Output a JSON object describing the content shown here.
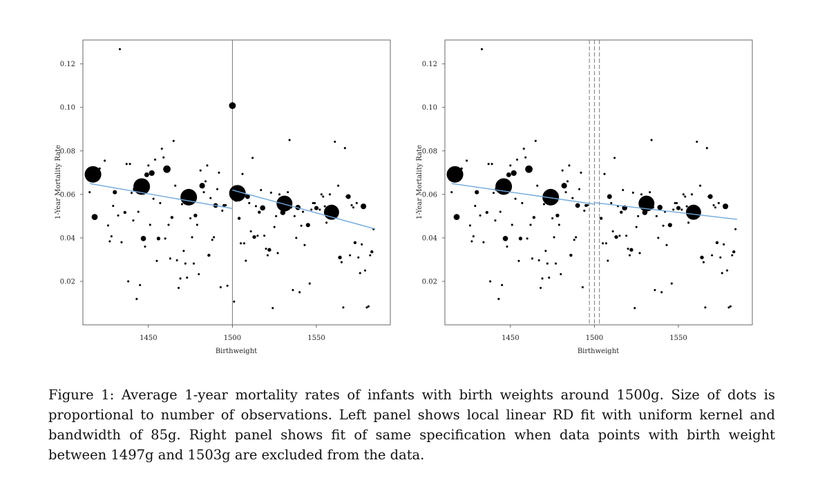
{
  "chart_data": [
    {
      "type": "scatter",
      "panel": "left",
      "title": "",
      "xlabel": "Birthweight",
      "ylabel": "1-Year Mortality Rate",
      "xlim": [
        1411,
        1594
      ],
      "ylim": [
        0.0,
        0.131
      ],
      "xticks": [
        1450,
        1500,
        1550
      ],
      "yticks": [
        0.02,
        0.04,
        0.06,
        0.08,
        0.1,
        0.12
      ],
      "ytick_labels": [
        "0.02",
        "0.04",
        "0.06",
        "0.08",
        "0.10",
        "0.12"
      ],
      "cutoff_lines": [
        1500
      ],
      "cutoff_style": "solid",
      "excluded_points": false,
      "fit_lines": [
        {
          "x": [
            1415,
            1500
          ],
          "y": [
            0.065,
            0.0535
          ]
        },
        {
          "x": [
            1500,
            1585
          ],
          "y": [
            0.062,
            0.0441
          ]
        }
      ],
      "points": [
        {
          "x": 1415,
          "y": 0.061,
          "n": 1
        },
        {
          "x": 1417,
          "y": 0.0692,
          "n": 60
        },
        {
          "x": 1418,
          "y": 0.0496,
          "n": 8
        },
        {
          "x": 1421,
          "y": 0.0719,
          "n": 1
        },
        {
          "x": 1424,
          "y": 0.0755,
          "n": 1
        },
        {
          "x": 1426,
          "y": 0.0457,
          "n": 1
        },
        {
          "x": 1427,
          "y": 0.0384,
          "n": 1
        },
        {
          "x": 1428,
          "y": 0.0407,
          "n": 1
        },
        {
          "x": 1429,
          "y": 0.0547,
          "n": 1
        },
        {
          "x": 1430,
          "y": 0.061,
          "n": 4
        },
        {
          "x": 1432,
          "y": 0.0503,
          "n": 1
        },
        {
          "x": 1433,
          "y": 0.1268,
          "n": 1
        },
        {
          "x": 1434,
          "y": 0.038,
          "n": 1
        },
        {
          "x": 1436,
          "y": 0.0517,
          "n": 2
        },
        {
          "x": 1437,
          "y": 0.074,
          "n": 1
        },
        {
          "x": 1438,
          "y": 0.02,
          "n": 1
        },
        {
          "x": 1439,
          "y": 0.074,
          "n": 1
        },
        {
          "x": 1440,
          "y": 0.0607,
          "n": 1
        },
        {
          "x": 1441,
          "y": 0.048,
          "n": 1
        },
        {
          "x": 1442,
          "y": 0.0624,
          "n": 4
        },
        {
          "x": 1443,
          "y": 0.0119,
          "n": 1
        },
        {
          "x": 1444,
          "y": 0.052,
          "n": 1
        },
        {
          "x": 1445,
          "y": 0.0183,
          "n": 1
        },
        {
          "x": 1446,
          "y": 0.0636,
          "n": 60
        },
        {
          "x": 1447,
          "y": 0.0397,
          "n": 6
        },
        {
          "x": 1448,
          "y": 0.036,
          "n": 1
        },
        {
          "x": 1449,
          "y": 0.069,
          "n": 5
        },
        {
          "x": 1450,
          "y": 0.0733,
          "n": 1
        },
        {
          "x": 1451,
          "y": 0.046,
          "n": 1
        },
        {
          "x": 1452,
          "y": 0.0698,
          "n": 7
        },
        {
          "x": 1453,
          "y": 0.058,
          "n": 1
        },
        {
          "x": 1454,
          "y": 0.076,
          "n": 1
        },
        {
          "x": 1455,
          "y": 0.0294,
          "n": 1
        },
        {
          "x": 1456,
          "y": 0.0397,
          "n": 3
        },
        {
          "x": 1457,
          "y": 0.056,
          "n": 1
        },
        {
          "x": 1458,
          "y": 0.081,
          "n": 1
        },
        {
          "x": 1459,
          "y": 0.077,
          "n": 1
        },
        {
          "x": 1460,
          "y": 0.0397,
          "n": 1
        },
        {
          "x": 1461,
          "y": 0.0716,
          "n": 12
        },
        {
          "x": 1462,
          "y": 0.046,
          "n": 1
        },
        {
          "x": 1463,
          "y": 0.0305,
          "n": 1
        },
        {
          "x": 1464,
          "y": 0.0494,
          "n": 2
        },
        {
          "x": 1465,
          "y": 0.0846,
          "n": 1
        },
        {
          "x": 1466,
          "y": 0.064,
          "n": 1
        },
        {
          "x": 1467,
          "y": 0.0297,
          "n": 1
        },
        {
          "x": 1468,
          "y": 0.017,
          "n": 1
        },
        {
          "x": 1469,
          "y": 0.0213,
          "n": 1
        },
        {
          "x": 1470,
          "y": 0.0555,
          "n": 1
        },
        {
          "x": 1471,
          "y": 0.034,
          "n": 1
        },
        {
          "x": 1472,
          "y": 0.0282,
          "n": 1
        },
        {
          "x": 1473,
          "y": 0.0217,
          "n": 1
        },
        {
          "x": 1474,
          "y": 0.0587,
          "n": 60
        },
        {
          "x": 1475,
          "y": 0.049,
          "n": 1
        },
        {
          "x": 1476,
          "y": 0.0403,
          "n": 1
        },
        {
          "x": 1477,
          "y": 0.0282,
          "n": 1
        },
        {
          "x": 1478,
          "y": 0.0503,
          "n": 3
        },
        {
          "x": 1479,
          "y": 0.046,
          "n": 1
        },
        {
          "x": 1480,
          "y": 0.0233,
          "n": 1
        },
        {
          "x": 1481,
          "y": 0.071,
          "n": 1
        },
        {
          "x": 1482,
          "y": 0.064,
          "n": 7
        },
        {
          "x": 1483,
          "y": 0.061,
          "n": 1
        },
        {
          "x": 1484,
          "y": 0.066,
          "n": 1
        },
        {
          "x": 1485,
          "y": 0.0733,
          "n": 1
        },
        {
          "x": 1486,
          "y": 0.032,
          "n": 2
        },
        {
          "x": 1487,
          "y": 0.0583,
          "n": 1
        },
        {
          "x": 1488,
          "y": 0.0391,
          "n": 1
        },
        {
          "x": 1489,
          "y": 0.0403,
          "n": 1
        },
        {
          "x": 1490,
          "y": 0.0549,
          "n": 5
        },
        {
          "x": 1491,
          "y": 0.0624,
          "n": 1
        },
        {
          "x": 1492,
          "y": 0.07,
          "n": 1
        },
        {
          "x": 1493,
          "y": 0.0173,
          "n": 1
        },
        {
          "x": 1494,
          "y": 0.0525,
          "n": 1
        },
        {
          "x": 1495,
          "y": 0.0549,
          "n": 2
        },
        {
          "x": 1496,
          "y": 0.055,
          "n": 1
        },
        {
          "x": 1497,
          "y": 0.018,
          "n": 1
        },
        {
          "x": 1500,
          "y": 0.1008,
          "n": 10
        },
        {
          "x": 1501,
          "y": 0.0107,
          "n": 1
        },
        {
          "x": 1502,
          "y": 0.0571,
          "n": 1
        },
        {
          "x": 1503,
          "y": 0.0605,
          "n": 60
        },
        {
          "x": 1504,
          "y": 0.049,
          "n": 2
        },
        {
          "x": 1505,
          "y": 0.0375,
          "n": 1
        },
        {
          "x": 1506,
          "y": 0.0694,
          "n": 1
        },
        {
          "x": 1507,
          "y": 0.0375,
          "n": 1
        },
        {
          "x": 1508,
          "y": 0.0295,
          "n": 1
        },
        {
          "x": 1509,
          "y": 0.059,
          "n": 5
        },
        {
          "x": 1510,
          "y": 0.056,
          "n": 1
        },
        {
          "x": 1511,
          "y": 0.043,
          "n": 1
        },
        {
          "x": 1512,
          "y": 0.0768,
          "n": 1
        },
        {
          "x": 1513,
          "y": 0.0404,
          "n": 3
        },
        {
          "x": 1514,
          "y": 0.0546,
          "n": 1
        },
        {
          "x": 1515,
          "y": 0.041,
          "n": 1
        },
        {
          "x": 1516,
          "y": 0.0518,
          "n": 2
        },
        {
          "x": 1517,
          "y": 0.062,
          "n": 1
        },
        {
          "x": 1518,
          "y": 0.0538,
          "n": 6
        },
        {
          "x": 1519,
          "y": 0.041,
          "n": 1
        },
        {
          "x": 1520,
          "y": 0.035,
          "n": 1
        },
        {
          "x": 1521,
          "y": 0.032,
          "n": 1
        },
        {
          "x": 1522,
          "y": 0.0345,
          "n": 3
        },
        {
          "x": 1523,
          "y": 0.0608,
          "n": 1
        },
        {
          "x": 1524,
          "y": 0.0077,
          "n": 1
        },
        {
          "x": 1525,
          "y": 0.045,
          "n": 1
        },
        {
          "x": 1526,
          "y": 0.05,
          "n": 1
        },
        {
          "x": 1527,
          "y": 0.033,
          "n": 1
        },
        {
          "x": 1528,
          "y": 0.06,
          "n": 1
        },
        {
          "x": 1530,
          "y": 0.0517,
          "n": 6
        },
        {
          "x": 1531,
          "y": 0.0558,
          "n": 55
        },
        {
          "x": 1533,
          "y": 0.061,
          "n": 1
        },
        {
          "x": 1534,
          "y": 0.085,
          "n": 1
        },
        {
          "x": 1535,
          "y": 0.054,
          "n": 1
        },
        {
          "x": 1536,
          "y": 0.016,
          "n": 1
        },
        {
          "x": 1537,
          "y": 0.05,
          "n": 1
        },
        {
          "x": 1538,
          "y": 0.04,
          "n": 1
        },
        {
          "x": 1539,
          "y": 0.054,
          "n": 6
        },
        {
          "x": 1540,
          "y": 0.015,
          "n": 1
        },
        {
          "x": 1541,
          "y": 0.0456,
          "n": 1
        },
        {
          "x": 1542,
          "y": 0.052,
          "n": 1
        },
        {
          "x": 1543,
          "y": 0.0367,
          "n": 1
        },
        {
          "x": 1545,
          "y": 0.0459,
          "n": 4
        },
        {
          "x": 1546,
          "y": 0.019,
          "n": 1
        },
        {
          "x": 1547,
          "y": 0.053,
          "n": 1
        },
        {
          "x": 1548,
          "y": 0.056,
          "n": 1
        },
        {
          "x": 1549,
          "y": 0.056,
          "n": 1
        },
        {
          "x": 1550,
          "y": 0.0537,
          "n": 4
        },
        {
          "x": 1552,
          "y": 0.053,
          "n": 1
        },
        {
          "x": 1553,
          "y": 0.06,
          "n": 1
        },
        {
          "x": 1554,
          "y": 0.059,
          "n": 1
        },
        {
          "x": 1555,
          "y": 0.0545,
          "n": 1
        },
        {
          "x": 1556,
          "y": 0.047,
          "n": 1
        },
        {
          "x": 1558,
          "y": 0.06,
          "n": 1
        },
        {
          "x": 1559,
          "y": 0.0518,
          "n": 50
        },
        {
          "x": 1561,
          "y": 0.0842,
          "n": 1
        },
        {
          "x": 1562,
          "y": 0.051,
          "n": 1
        },
        {
          "x": 1563,
          "y": 0.064,
          "n": 1
        },
        {
          "x": 1564,
          "y": 0.031,
          "n": 3
        },
        {
          "x": 1565,
          "y": 0.0288,
          "n": 1
        },
        {
          "x": 1566,
          "y": 0.008,
          "n": 1
        },
        {
          "x": 1567,
          "y": 0.0813,
          "n": 1
        },
        {
          "x": 1568,
          "y": 0.059,
          "n": 1
        },
        {
          "x": 1569,
          "y": 0.059,
          "n": 5
        },
        {
          "x": 1570,
          "y": 0.032,
          "n": 1
        },
        {
          "x": 1571,
          "y": 0.055,
          "n": 1
        },
        {
          "x": 1572,
          "y": 0.054,
          "n": 1
        },
        {
          "x": 1573,
          "y": 0.0378,
          "n": 2
        },
        {
          "x": 1574,
          "y": 0.056,
          "n": 1
        },
        {
          "x": 1575,
          "y": 0.031,
          "n": 1
        },
        {
          "x": 1576,
          "y": 0.0238,
          "n": 1
        },
        {
          "x": 1577,
          "y": 0.037,
          "n": 1
        },
        {
          "x": 1578,
          "y": 0.0545,
          "n": 7
        },
        {
          "x": 1579,
          "y": 0.025,
          "n": 1
        },
        {
          "x": 1580,
          "y": 0.008,
          "n": 1
        },
        {
          "x": 1581,
          "y": 0.0085,
          "n": 1
        },
        {
          "x": 1582,
          "y": 0.032,
          "n": 1
        },
        {
          "x": 1583,
          "y": 0.0336,
          "n": 2
        },
        {
          "x": 1584,
          "y": 0.044,
          "n": 1
        }
      ]
    },
    {
      "type": "scatter",
      "panel": "right",
      "title": "",
      "xlabel": "Birthweight",
      "ylabel": "1-Year Mortality Rate",
      "xlim": [
        1411,
        1594
      ],
      "ylim": [
        0.0,
        0.131
      ],
      "xticks": [
        1450,
        1500,
        1550
      ],
      "yticks": [
        0.02,
        0.04,
        0.06,
        0.08,
        0.1,
        0.12
      ],
      "ytick_labels": [
        "0.02",
        "0.04",
        "0.06",
        "0.08",
        "0.10",
        "0.12"
      ],
      "cutoff_lines": [
        1497,
        1500,
        1503
      ],
      "cutoff_style": "dashed",
      "excluded_points": true,
      "exclusion_range": [
        1497,
        1503
      ],
      "fit_lines": [
        {
          "x": [
            1415,
            1500
          ],
          "y": [
            0.065,
            0.0555
          ]
        },
        {
          "x": [
            1500,
            1585
          ],
          "y": [
            0.0562,
            0.0485
          ]
        }
      ]
    }
  ],
  "caption": "Figure 1: Average 1-year mortality rates of infants with birth weights around 1500g. Size of dots is proportional to number of observations. Left panel shows local linear RD fit with uniform kernel and bandwidth of 85g. Right panel shows fit of same specification when data points with birth weight between 1497g and 1503g are excluded from the data.",
  "colors": {
    "fit_line": "#6fa8dc",
    "points": "#000000",
    "axis": "#555555",
    "cutoff": "#777777"
  }
}
